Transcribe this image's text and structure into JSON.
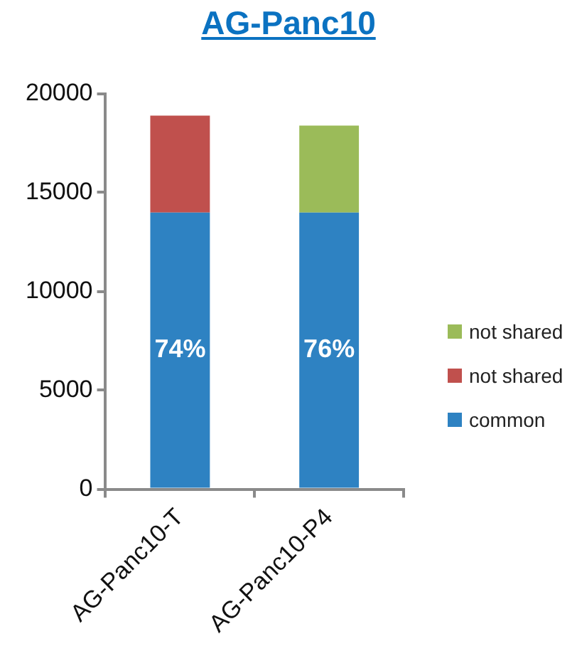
{
  "chart_data": {
    "type": "bar",
    "title": "AG-Panc10",
    "categories": [
      "AG-Panc10-T",
      "AG-Panc10-P4"
    ],
    "stacked": true,
    "series": [
      {
        "name": "common",
        "color": "#2e82c2",
        "values": [
          14000,
          14000
        ]
      },
      {
        "name": "not shared",
        "color": "#c0504d",
        "values": [
          4900,
          null
        ]
      },
      {
        "name": "not shared",
        "color": "#9bbb59",
        "values": [
          null,
          4400
        ]
      }
    ],
    "annotations": [
      "74%",
      "76%"
    ],
    "ylim": [
      0,
      20000
    ],
    "yticks": [
      0,
      5000,
      10000,
      15000,
      20000
    ],
    "grid": false,
    "legend": "right"
  }
}
